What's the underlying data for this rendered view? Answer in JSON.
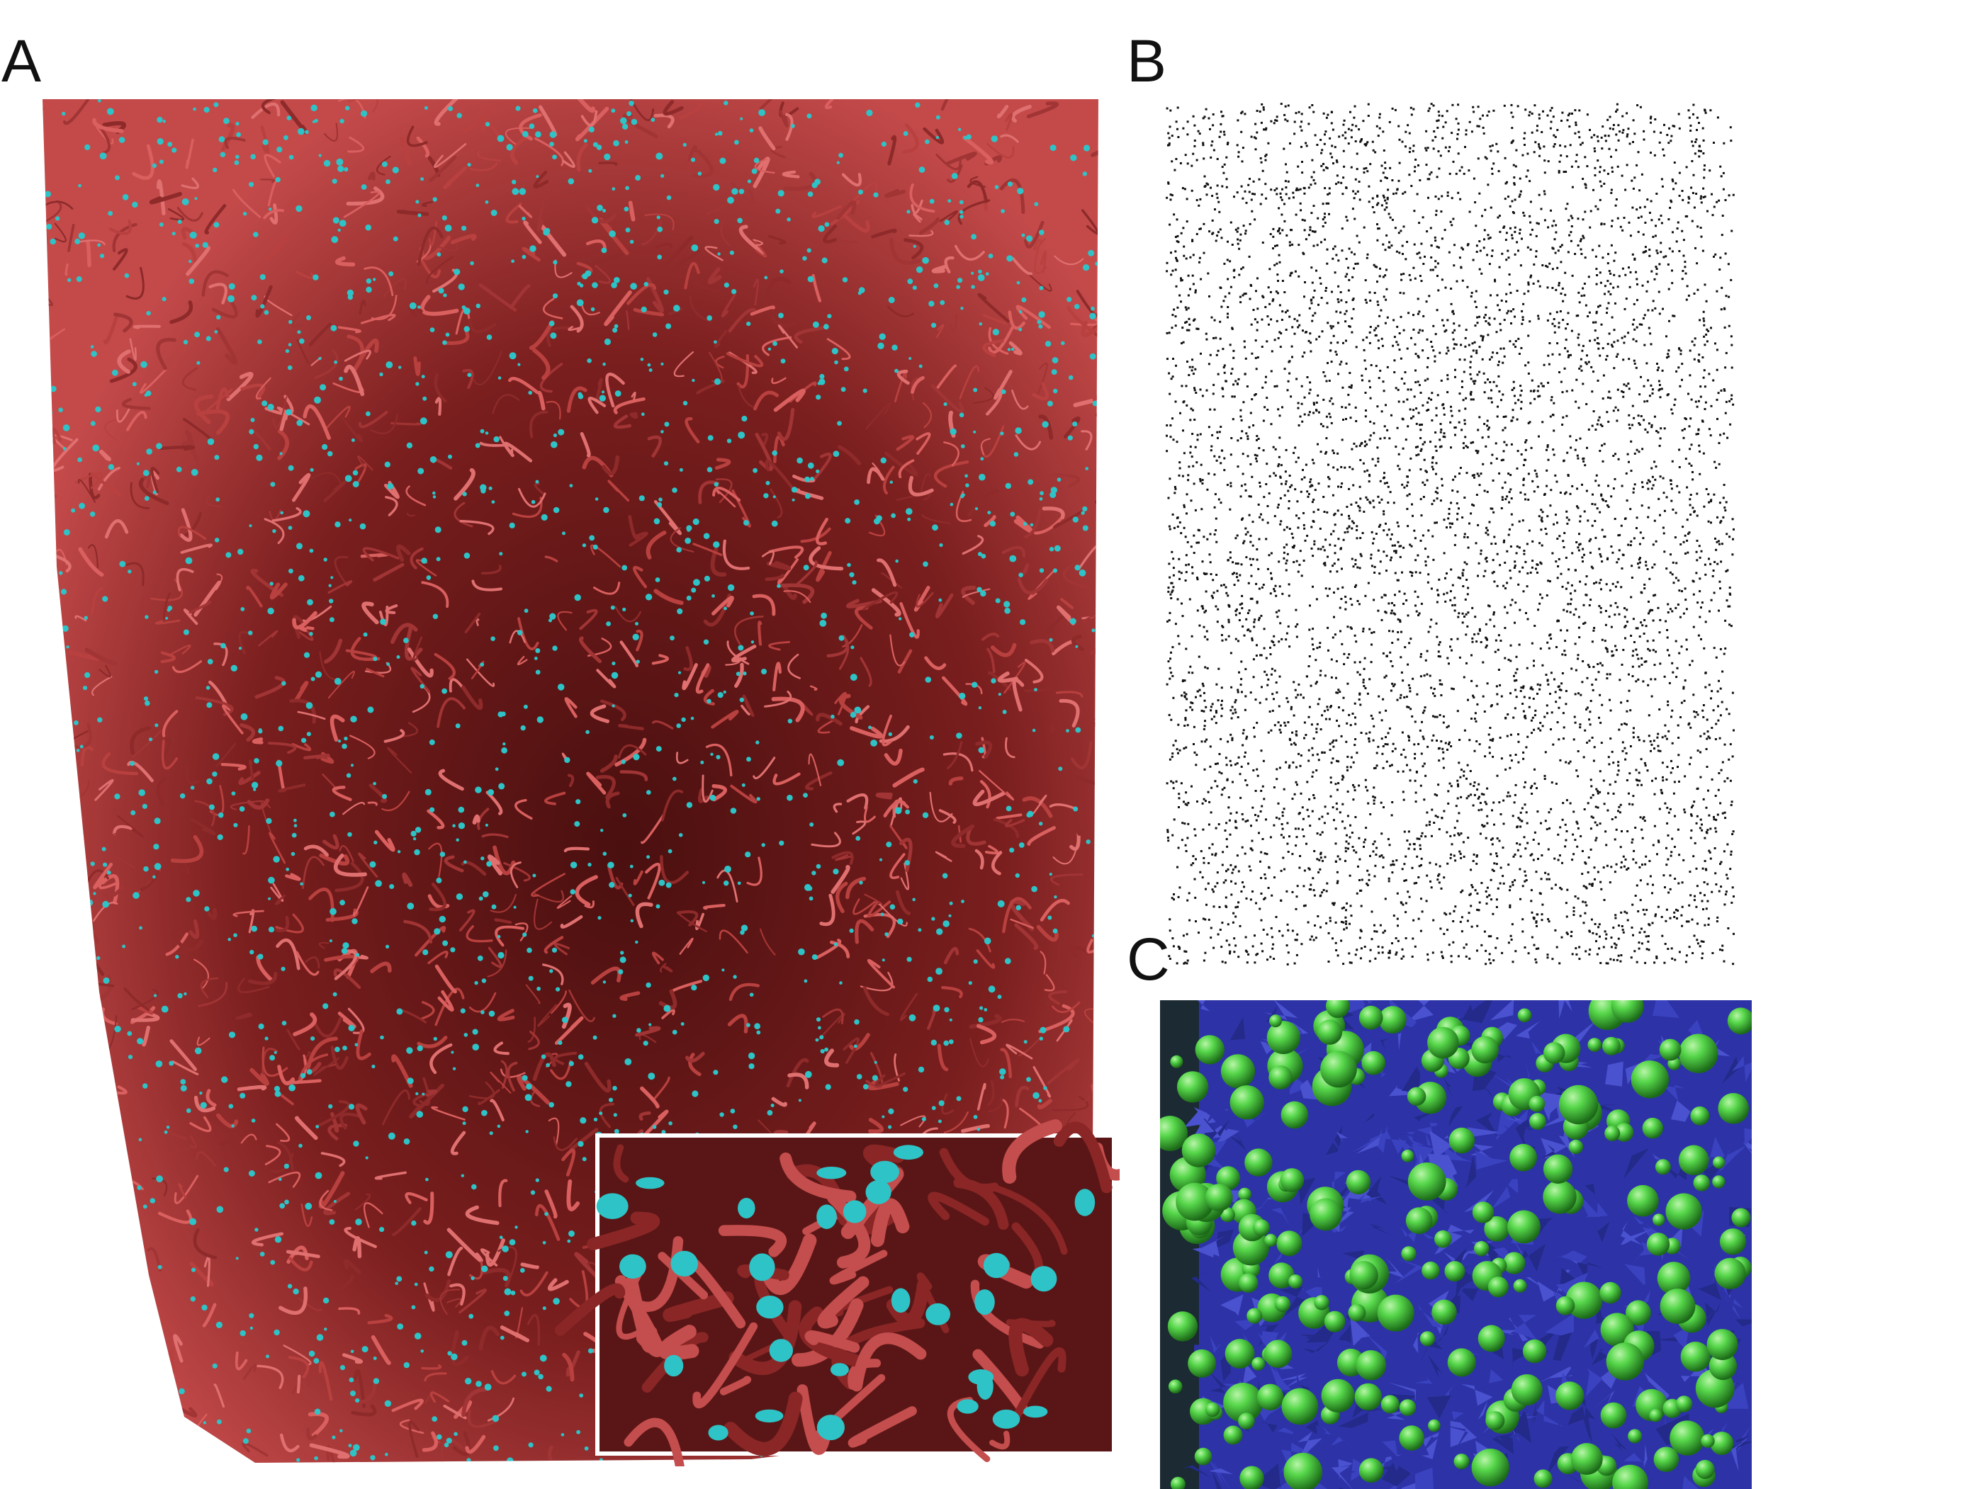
{
  "panels": {
    "a": {
      "letter": "A"
    },
    "b": {
      "letter": "B"
    },
    "c": {
      "letter": "C"
    }
  },
  "colors": {
    "vessel_light": "#d9605f",
    "vessel_mid": "#b8413f",
    "vessel_dark": "#5c1414",
    "cell_cyan": "#2ec3c6",
    "dot_black": "#111111",
    "blue_shape": "#2d33a6",
    "green_sphere": "#56d64a",
    "c_background": "#1b2a33"
  },
  "icons": {
    "panel_a": "vessel-network-render",
    "panel_a_inset": "zoom-inset",
    "panel_b": "point-cloud",
    "panel_c": "sphere-packing-render"
  }
}
